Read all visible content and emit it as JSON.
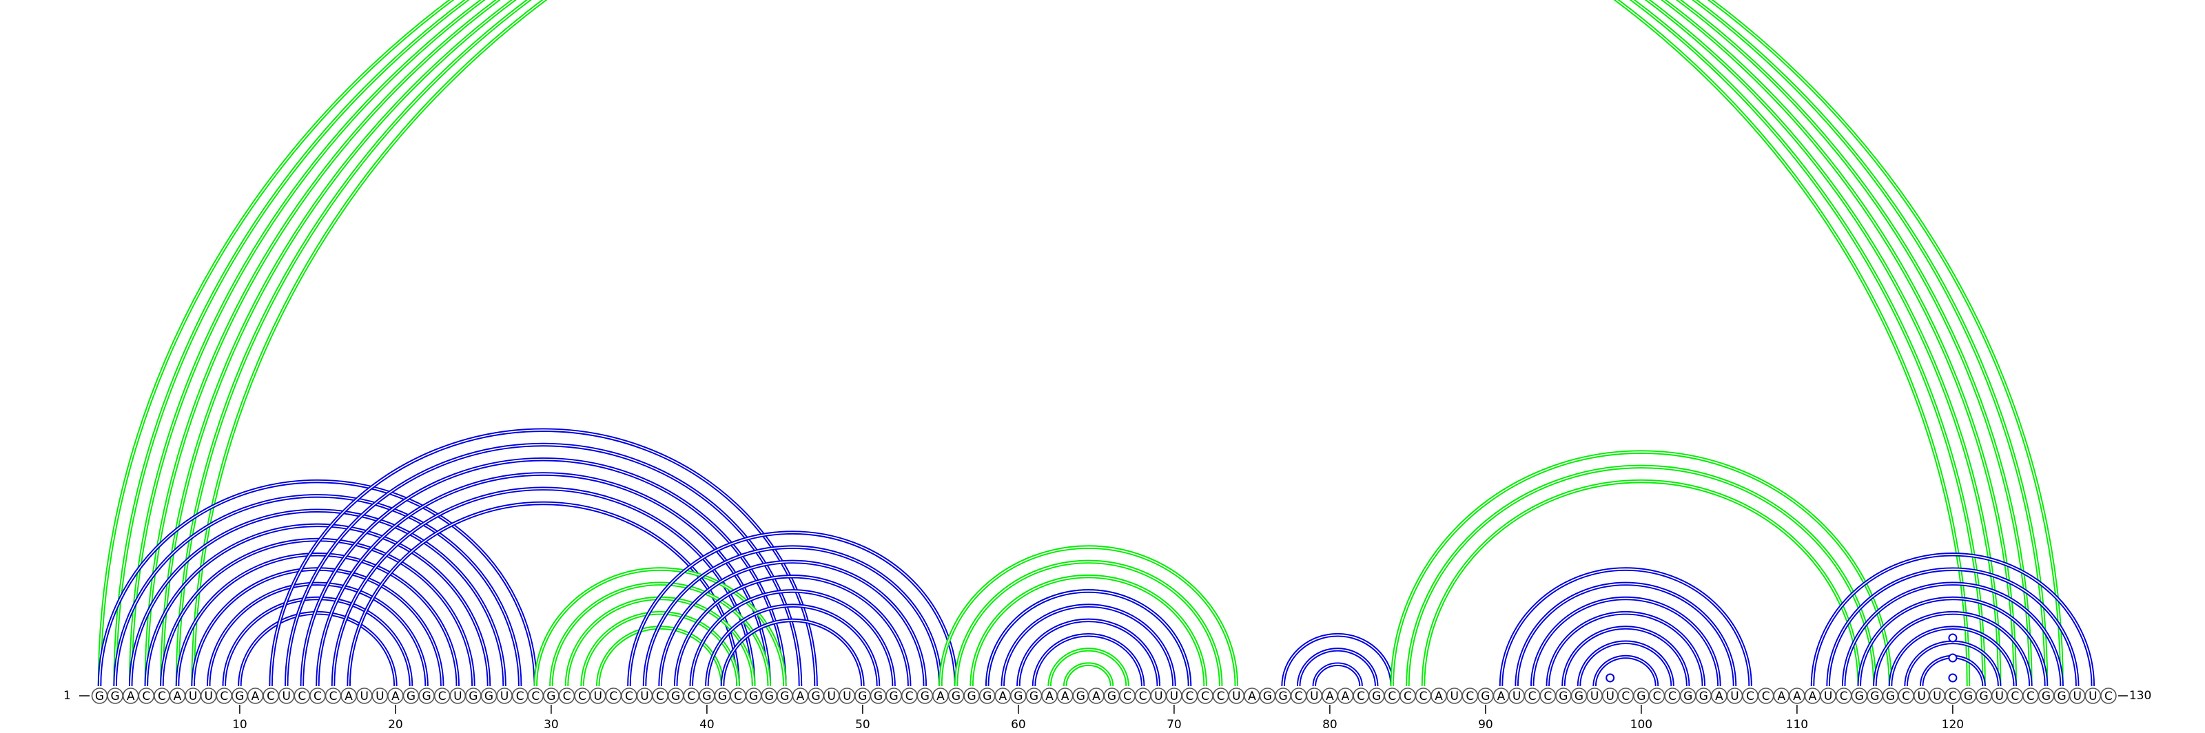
{
  "sequence": "GGACCAUUCGACUCCCAUUAGGCUGGUCCGCCUCCUCGCGGCGGGAGUUGGGCGAGGGAGGAAGAGCCUUCCCUAGGCUAACGCCCAUCGAUCCGGUUCGCCGGAUCCAAAUCGGGCUUCGGUCCGGUUC",
  "labels": {
    "start_index": "1",
    "end_index": "130",
    "ticks": [
      "10",
      "20",
      "30",
      "40",
      "50",
      "60",
      "70",
      "80",
      "90",
      "100",
      "110",
      "120"
    ]
  },
  "colors": {
    "blue": "#0000dd",
    "green": "#00ee00",
    "base_outline": "#555555"
  },
  "arc_groups": [
    {
      "color": "green",
      "pairs": [
        [
          1,
          121
        ],
        [
          2,
          122
        ],
        [
          3,
          123
        ],
        [
          4,
          124
        ],
        [
          5,
          125
        ],
        [
          6,
          126
        ],
        [
          7,
          127
        ]
      ]
    },
    {
      "color": "blue",
      "pairs": [
        [
          1,
          29
        ],
        [
          2,
          28
        ],
        [
          3,
          27
        ],
        [
          4,
          26
        ],
        [
          5,
          25
        ],
        [
          6,
          24
        ],
        [
          7,
          23
        ],
        [
          8,
          22
        ],
        [
          9,
          21
        ],
        [
          10,
          20
        ]
      ]
    },
    {
      "color": "blue",
      "pairs": [
        [
          12,
          47
        ],
        [
          13,
          46
        ],
        [
          14,
          45
        ],
        [
          15,
          44
        ],
        [
          16,
          43
        ],
        [
          17,
          42
        ]
      ]
    },
    {
      "color": "green",
      "pairs": [
        [
          29,
          45
        ],
        [
          30,
          44
        ],
        [
          31,
          43
        ],
        [
          32,
          42
        ],
        [
          33,
          41
        ]
      ]
    },
    {
      "color": "blue",
      "pairs": [
        [
          35,
          56
        ],
        [
          36,
          55
        ],
        [
          37,
          54
        ],
        [
          38,
          53
        ],
        [
          39,
          52
        ],
        [
          40,
          51
        ],
        [
          41,
          50
        ]
      ]
    },
    {
      "color": "green",
      "pairs": [
        [
          55,
          74
        ],
        [
          56,
          73
        ],
        [
          57,
          72
        ],
        [
          58,
          71
        ]
      ]
    },
    {
      "color": "blue",
      "pairs": [
        [
          58,
          71
        ],
        [
          59,
          70
        ],
        [
          60,
          69
        ],
        [
          61,
          68
        ]
      ]
    },
    {
      "color": "green",
      "pairs": [
        [
          62,
          67
        ],
        [
          63,
          66
        ]
      ]
    },
    {
      "color": "blue",
      "pairs": [
        [
          77,
          84
        ],
        [
          78,
          83
        ],
        [
          79,
          82
        ]
      ]
    },
    {
      "color": "green",
      "pairs": [
        [
          84,
          116
        ],
        [
          85,
          115
        ],
        [
          86,
          114
        ]
      ]
    },
    {
      "color": "blue",
      "pairs": [
        [
          91,
          107
        ],
        [
          92,
          106
        ],
        [
          93,
          105
        ],
        [
          94,
          104
        ],
        [
          95,
          103
        ],
        [
          96,
          102
        ],
        [
          97,
          101
        ]
      ]
    },
    {
      "color": "blue",
      "pairs": [
        [
          111,
          129
        ],
        [
          112,
          128
        ],
        [
          113,
          127
        ],
        [
          114,
          126
        ],
        [
          115,
          125
        ],
        [
          116,
          124
        ],
        [
          117,
          123
        ],
        [
          118,
          122
        ]
      ]
    }
  ],
  "marks": [
    {
      "position": 98,
      "level": 1
    },
    {
      "position": 120,
      "level": 1
    },
    {
      "position": 120,
      "level": 3
    },
    {
      "position": 120,
      "level": 5
    }
  ]
}
